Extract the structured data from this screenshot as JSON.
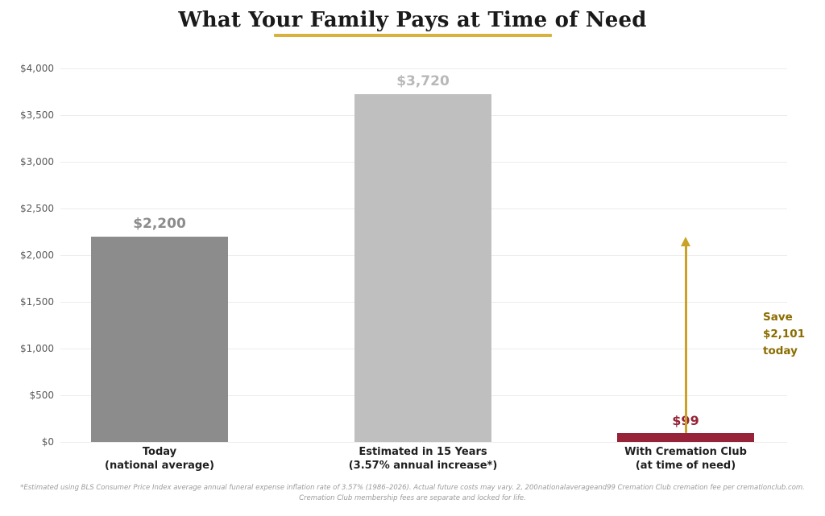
{
  "title": "What Your Family Pays at Time of Need",
  "chart_data": {
    "type": "bar",
    "title": "What Your Family Pays at Time of Need",
    "xlabel": "",
    "ylabel": "",
    "categories": [
      [
        "Today",
        "(national average)"
      ],
      [
        "Estimated in 15 Years",
        "(3.57% annual increase*)"
      ],
      [
        "With Cremation Club",
        "(at time of need)"
      ]
    ],
    "values": [
      2200,
      3720,
      99
    ],
    "value_labels": [
      "$2,200",
      "$3,720",
      "$99"
    ],
    "bar_colors": [
      "#8c8c8c",
      "#bfbfbf",
      "#962338"
    ],
    "value_label_colors": [
      "#8c8c8c",
      "#b8b8b8",
      "#962338"
    ],
    "ylim": [
      0,
      4000
    ],
    "ytick_step": 500,
    "ytick_labels": [
      "$0",
      "$500",
      "$1,000",
      "$1,500",
      "$2,000",
      "$2,500",
      "$3,000",
      "$3,500",
      "$4,000"
    ],
    "grid": true,
    "legend": "none",
    "annotation": {
      "text_lines": [
        "Save",
        "$2,101",
        "today"
      ],
      "text_color": "#8a6d00",
      "arrow_color": "#C9A227",
      "arrow_from_value": 99,
      "arrow_to_value": 2200,
      "arrow_category_index": 2
    }
  },
  "colors": {
    "title_underline": "#D9B23E",
    "gridline": "#ececec"
  },
  "footnote": {
    "line1": "*Estimated using BLS Consumer Price Index average annual funeral expense inflation rate of 3.57% (1986–2026). Actual future costs may vary. 2, 200nationalaverageand99 Cremation Club cremation fee per cremationclub.com.",
    "line2": "Cremation Club membership fees are separate and locked for life."
  }
}
